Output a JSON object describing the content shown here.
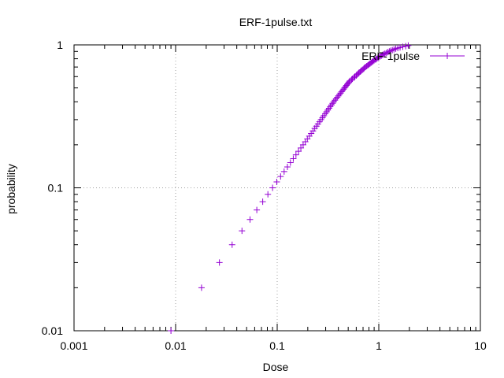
{
  "chart_data": {
    "type": "scatter",
    "title": "ERF-1pulse.txt",
    "xlabel": "Dose",
    "ylabel": "probability",
    "xscale": "log",
    "yscale": "log",
    "xlim": [
      0.001,
      10
    ],
    "ylim": [
      0.01,
      1
    ],
    "xticks": [
      {
        "v": 0.001,
        "label": "0.001"
      },
      {
        "v": 0.01,
        "label": "0.01"
      },
      {
        "v": 0.1,
        "label": "0.1"
      },
      {
        "v": 1,
        "label": "1"
      },
      {
        "v": 10,
        "label": "10"
      }
    ],
    "yticks": [
      {
        "v": 0.01,
        "label": "0.01"
      },
      {
        "v": 0.1,
        "label": "0.1"
      },
      {
        "v": 1,
        "label": "1"
      }
    ],
    "grid": true,
    "legend_position": "top-right",
    "series": [
      {
        "name": "ERF-1pulse",
        "color": "#9400d3",
        "marker": "plus",
        "points": [
          [
            0.009,
            0.01
          ],
          [
            0.018,
            0.02
          ],
          [
            0.027,
            0.03
          ],
          [
            0.036,
            0.04
          ],
          [
            0.045,
            0.05
          ],
          [
            0.054,
            0.06
          ],
          [
            0.063,
            0.07
          ],
          [
            0.072,
            0.08
          ],
          [
            0.081,
            0.09
          ],
          [
            0.09,
            0.1
          ],
          [
            0.099,
            0.11
          ],
          [
            0.108,
            0.12
          ],
          [
            0.117,
            0.13
          ],
          [
            0.126,
            0.14
          ],
          [
            0.135,
            0.15
          ],
          [
            0.144,
            0.16
          ],
          [
            0.153,
            0.17
          ],
          [
            0.162,
            0.18
          ],
          [
            0.171,
            0.19
          ],
          [
            0.18,
            0.2
          ],
          [
            0.189,
            0.21
          ],
          [
            0.198,
            0.22
          ],
          [
            0.207,
            0.23
          ],
          [
            0.216,
            0.24
          ],
          [
            0.225,
            0.25
          ],
          [
            0.234,
            0.26
          ],
          [
            0.243,
            0.27
          ],
          [
            0.252,
            0.28
          ],
          [
            0.261,
            0.29
          ],
          [
            0.27,
            0.3
          ],
          [
            0.279,
            0.31
          ],
          [
            0.288,
            0.32
          ],
          [
            0.297,
            0.33
          ],
          [
            0.306,
            0.34
          ],
          [
            0.315,
            0.35
          ],
          [
            0.324,
            0.36
          ],
          [
            0.333,
            0.37
          ],
          [
            0.342,
            0.38
          ],
          [
            0.351,
            0.39
          ],
          [
            0.36,
            0.4
          ],
          [
            0.37,
            0.41
          ],
          [
            0.38,
            0.42
          ],
          [
            0.39,
            0.43
          ],
          [
            0.4,
            0.44
          ],
          [
            0.41,
            0.45
          ],
          [
            0.42,
            0.46
          ],
          [
            0.43,
            0.47
          ],
          [
            0.44,
            0.48
          ],
          [
            0.45,
            0.49
          ],
          [
            0.46,
            0.5
          ],
          [
            0.47,
            0.51
          ],
          [
            0.48,
            0.52
          ],
          [
            0.49,
            0.53
          ],
          [
            0.5,
            0.54
          ],
          [
            0.51,
            0.55
          ],
          [
            0.52,
            0.56
          ],
          [
            0.54,
            0.57
          ],
          [
            0.55,
            0.58
          ],
          [
            0.57,
            0.59
          ],
          [
            0.58,
            0.6
          ],
          [
            0.6,
            0.61
          ],
          [
            0.61,
            0.62
          ],
          [
            0.63,
            0.63
          ],
          [
            0.64,
            0.64
          ],
          [
            0.66,
            0.65
          ],
          [
            0.67,
            0.66
          ],
          [
            0.69,
            0.67
          ],
          [
            0.71,
            0.68
          ],
          [
            0.72,
            0.69
          ],
          [
            0.74,
            0.7
          ],
          [
            0.76,
            0.71
          ],
          [
            0.78,
            0.72
          ],
          [
            0.8,
            0.73
          ],
          [
            0.82,
            0.74
          ],
          [
            0.84,
            0.75
          ],
          [
            0.86,
            0.76
          ],
          [
            0.88,
            0.77
          ],
          [
            0.9,
            0.78
          ],
          [
            0.93,
            0.79
          ],
          [
            0.95,
            0.8
          ],
          [
            0.98,
            0.81
          ],
          [
            1.0,
            0.82
          ],
          [
            1.03,
            0.83
          ],
          [
            1.06,
            0.84
          ],
          [
            1.09,
            0.85
          ],
          [
            1.12,
            0.86
          ],
          [
            1.15,
            0.87
          ],
          [
            1.19,
            0.88
          ],
          [
            1.23,
            0.89
          ],
          [
            1.27,
            0.9
          ],
          [
            1.31,
            0.91
          ],
          [
            1.36,
            0.92
          ],
          [
            1.41,
            0.93
          ],
          [
            1.47,
            0.94
          ],
          [
            1.54,
            0.95
          ],
          [
            1.62,
            0.96
          ],
          [
            1.72,
            0.97
          ],
          [
            1.84,
            0.98
          ],
          [
            1.95,
            0.99
          ]
        ]
      }
    ]
  }
}
